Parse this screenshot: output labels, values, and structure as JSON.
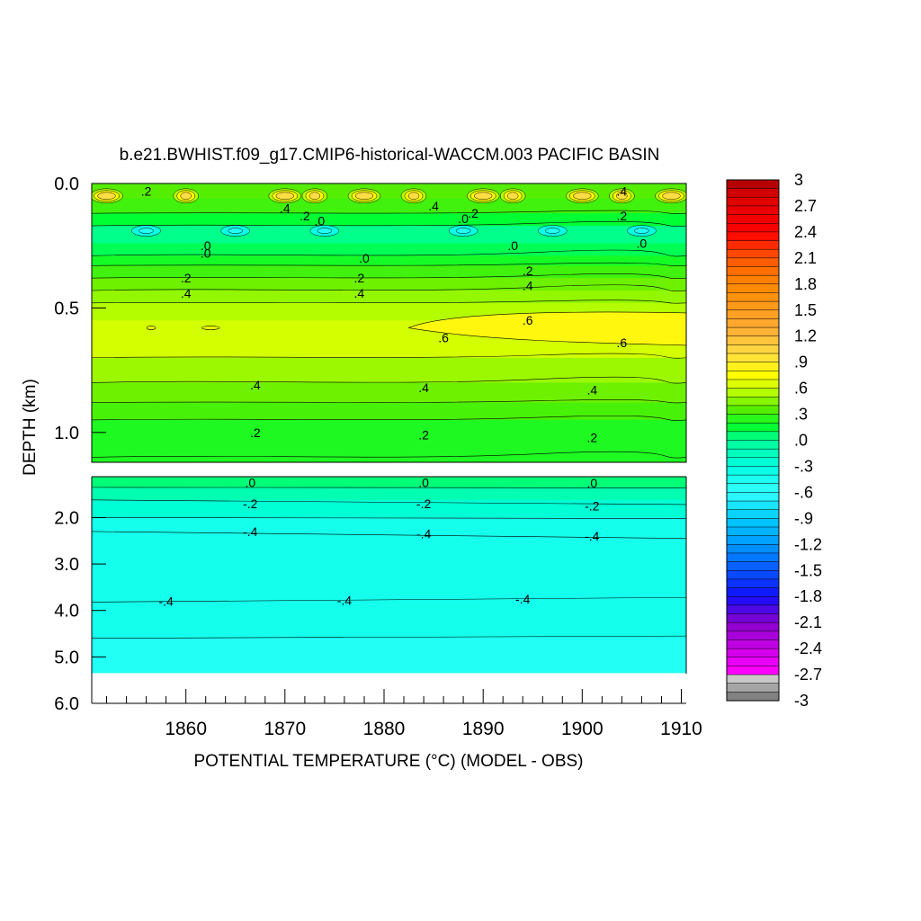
{
  "chart_data": {
    "type": "contour",
    "title": "b.e21.BWHIST.f09_g17.CMIP6-historical-WACCM.003 PACIFIC BASIN",
    "xlabel": "POTENTIAL TEMPERATURE (°C) (MODEL - OBS)",
    "ylabel": "DEPTH (km)",
    "xlim": [
      1850.5,
      1910.5
    ],
    "x_ticks": [
      1860,
      1870,
      1880,
      1890,
      1900,
      1910
    ],
    "x_tick_labels": [
      "1860",
      "1870",
      "1880",
      "1890",
      "1900",
      "1910"
    ],
    "upper_panel": {
      "ylim": [
        0.0,
        1.12
      ],
      "y_ticks": [
        0.0,
        0.5,
        1.0
      ],
      "y_tick_labels": [
        "0.0",
        "0.5",
        "1.0"
      ],
      "contour_labels": [
        {
          "text": ".2",
          "x": 1856,
          "y": 0.03
        },
        {
          "text": ".4",
          "x": 1870,
          "y": 0.1
        },
        {
          "text": ".2",
          "x": 1872,
          "y": 0.13
        },
        {
          "text": ".0",
          "x": 1873.5,
          "y": 0.15
        },
        {
          "text": ".4",
          "x": 1885,
          "y": 0.09
        },
        {
          "text": ".0",
          "x": 1888,
          "y": 0.14
        },
        {
          "text": ".2",
          "x": 1889,
          "y": 0.12
        },
        {
          "text": ".4",
          "x": 1904,
          "y": 0.03
        },
        {
          "text": ".2",
          "x": 1904,
          "y": 0.13
        },
        {
          "text": ".0",
          "x": 1862,
          "y": 0.25
        },
        {
          "text": ".0",
          "x": 1862,
          "y": 0.28
        },
        {
          "text": ".0",
          "x": 1878,
          "y": 0.3
        },
        {
          "text": ".0",
          "x": 1893,
          "y": 0.25
        },
        {
          "text": ".0",
          "x": 1906,
          "y": 0.24
        },
        {
          "text": ".2",
          "x": 1860,
          "y": 0.38
        },
        {
          "text": ".2",
          "x": 1877.5,
          "y": 0.38
        },
        {
          "text": ".2",
          "x": 1894.5,
          "y": 0.35
        },
        {
          "text": ".4",
          "x": 1860,
          "y": 0.44
        },
        {
          "text": ".4",
          "x": 1877.5,
          "y": 0.44
        },
        {
          "text": ".4",
          "x": 1894.5,
          "y": 0.41
        },
        {
          "text": ".6",
          "x": 1894.5,
          "y": 0.55
        },
        {
          "text": ".6",
          "x": 1886,
          "y": 0.62
        },
        {
          "text": ".6",
          "x": 1904,
          "y": 0.64
        },
        {
          "text": ".4",
          "x": 1867,
          "y": 0.81
        },
        {
          "text": ".4",
          "x": 1884,
          "y": 0.82
        },
        {
          "text": ".4",
          "x": 1901,
          "y": 0.83
        },
        {
          "text": ".2",
          "x": 1867,
          "y": 1.0
        },
        {
          "text": ".2",
          "x": 1884,
          "y": 1.01
        },
        {
          "text": ".2",
          "x": 1901,
          "y": 1.02
        }
      ]
    },
    "lower_panel": {
      "ylim": [
        1.12,
        6.0
      ],
      "data_bottom": 5.35,
      "y_ticks": [
        2.0,
        3.0,
        4.0,
        5.0,
        6.0
      ],
      "y_tick_labels": [
        "2.0",
        "3.0",
        "4.0",
        "5.0",
        "6.0"
      ],
      "contour_labels": [
        {
          "text": ".0",
          "x": 1866.5,
          "y": 1.25
        },
        {
          "text": ".0",
          "x": 1884,
          "y": 1.25
        },
        {
          "text": ".0",
          "x": 1901,
          "y": 1.26
        },
        {
          "text": "-.2",
          "x": 1866.5,
          "y": 1.7
        },
        {
          "text": "-.2",
          "x": 1884,
          "y": 1.7
        },
        {
          "text": "-.2",
          "x": 1901,
          "y": 1.75
        },
        {
          "text": "-.4",
          "x": 1866.5,
          "y": 2.3
        },
        {
          "text": "-.4",
          "x": 1884,
          "y": 2.35
        },
        {
          "text": "-.4",
          "x": 1901,
          "y": 2.4
        },
        {
          "text": "-.4",
          "x": 1858,
          "y": 3.8
        },
        {
          "text": "-.4",
          "x": 1876,
          "y": 3.78
        },
        {
          "text": "-.4",
          "x": 1894,
          "y": 3.75
        }
      ]
    },
    "colorbar": {
      "min": -3.0,
      "max": 3.0,
      "step": 0.1,
      "tick_labels": [
        "3",
        "2.7",
        "2.4",
        "2.1",
        "1.8",
        "1.5",
        "1.2",
        ".9",
        ".6",
        ".3",
        ".0",
        "-.3",
        "-.6",
        "-.9",
        "-1.2",
        "-1.5",
        "-1.8",
        "-2.1",
        "-2.4",
        "-2.7",
        "-3"
      ]
    }
  }
}
